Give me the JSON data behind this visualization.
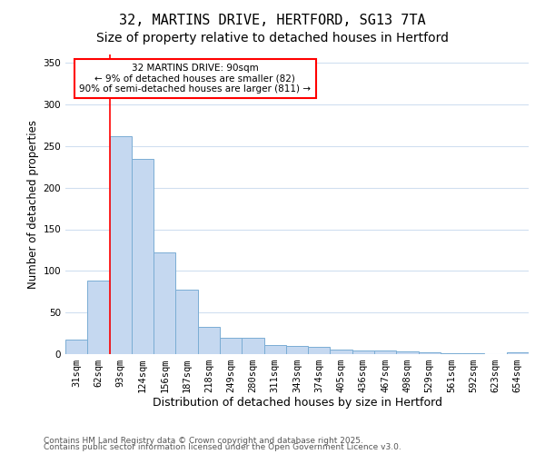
{
  "title1": "32, MARTINS DRIVE, HERTFORD, SG13 7TA",
  "title2": "Size of property relative to detached houses in Hertford",
  "xlabel": "Distribution of detached houses by size in Hertford",
  "ylabel": "Number of detached properties",
  "categories": [
    "31sqm",
    "62sqm",
    "93sqm",
    "124sqm",
    "156sqm",
    "187sqm",
    "218sqm",
    "249sqm",
    "280sqm",
    "311sqm",
    "343sqm",
    "374sqm",
    "405sqm",
    "436sqm",
    "467sqm",
    "498sqm",
    "529sqm",
    "561sqm",
    "592sqm",
    "623sqm",
    "654sqm"
  ],
  "values": [
    18,
    88,
    262,
    234,
    122,
    78,
    33,
    20,
    20,
    11,
    10,
    9,
    5,
    4,
    4,
    3,
    2,
    1,
    1,
    0,
    2
  ],
  "bar_color": "#c5d8f0",
  "bar_edge_color": "#7aadd4",
  "property_line_bin_index": 2,
  "annotation_text": "32 MARTINS DRIVE: 90sqm\n← 9% of detached houses are smaller (82)\n90% of semi-detached houses are larger (811) →",
  "annotation_box_color": "white",
  "annotation_box_edge": "red",
  "vline_color": "red",
  "ylim": [
    0,
    360
  ],
  "yticks": [
    0,
    50,
    100,
    150,
    200,
    250,
    300,
    350
  ],
  "footer1": "Contains HM Land Registry data © Crown copyright and database right 2025.",
  "footer2": "Contains public sector information licensed under the Open Government Licence v3.0.",
  "bg_color": "#ffffff",
  "plot_bg_color": "#ffffff",
  "grid_color": "#d0dff0",
  "title_fontsize": 11,
  "subtitle_fontsize": 10,
  "tick_fontsize": 7.5,
  "ylabel_fontsize": 8.5,
  "xlabel_fontsize": 9,
  "annotation_fontsize": 7.5,
  "footer_fontsize": 6.5
}
